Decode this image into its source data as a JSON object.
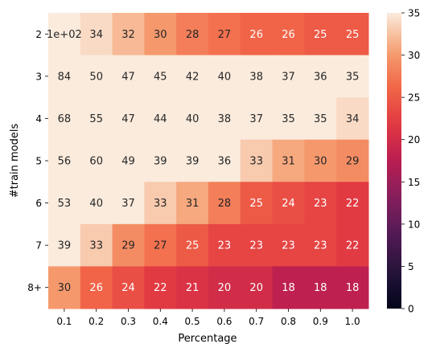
{
  "chart_data": {
    "type": "heatmap",
    "title": "",
    "xlabel": "Percentage",
    "ylabel": "#train models",
    "x_categories": [
      "0.1",
      "0.2",
      "0.3",
      "0.4",
      "0.5",
      "0.6",
      "0.7",
      "0.8",
      "0.9",
      "1.0"
    ],
    "y_categories": [
      "2",
      "3",
      "4",
      "5",
      "6",
      "7",
      "8+"
    ],
    "values": [
      [
        100,
        34,
        32,
        30,
        28,
        27,
        26,
        26,
        25,
        25
      ],
      [
        84,
        50,
        47,
        45,
        42,
        40,
        38,
        37,
        36,
        35
      ],
      [
        68,
        55,
        47,
        44,
        40,
        38,
        37,
        35,
        35,
        34
      ],
      [
        56,
        60,
        49,
        39,
        39,
        36,
        33,
        31,
        30,
        29
      ],
      [
        53,
        40,
        37,
        33,
        31,
        28,
        25,
        24,
        23,
        22
      ],
      [
        39,
        33,
        29,
        27,
        25,
        23,
        23,
        23,
        23,
        22
      ],
      [
        30,
        26,
        24,
        22,
        21,
        20,
        20,
        18,
        18,
        18
      ]
    ],
    "annotations": [
      [
        "1e+02",
        "34",
        "32",
        "30",
        "28",
        "27",
        "26",
        "26",
        "25",
        "25"
      ],
      [
        "84",
        "50",
        "47",
        "45",
        "42",
        "40",
        "38",
        "37",
        "36",
        "35"
      ],
      [
        "68",
        "55",
        "47",
        "44",
        "40",
        "38",
        "37",
        "35",
        "35",
        "34"
      ],
      [
        "56",
        "60",
        "49",
        "39",
        "39",
        "36",
        "33",
        "31",
        "30",
        "29"
      ],
      [
        "53",
        "40",
        "37",
        "33",
        "31",
        "28",
        "25",
        "24",
        "23",
        "22"
      ],
      [
        "39",
        "33",
        "29",
        "27",
        "25",
        "23",
        "23",
        "23",
        "23",
        "22"
      ],
      [
        "30",
        "26",
        "24",
        "22",
        "21",
        "20",
        "20",
        "18",
        "18",
        "18"
      ]
    ],
    "colorbar": {
      "min": 0,
      "max": 35,
      "ticks": [
        "0",
        "5",
        "10",
        "15",
        "20",
        "25",
        "30",
        "35"
      ],
      "colormap": "rocket"
    },
    "grid": false
  }
}
